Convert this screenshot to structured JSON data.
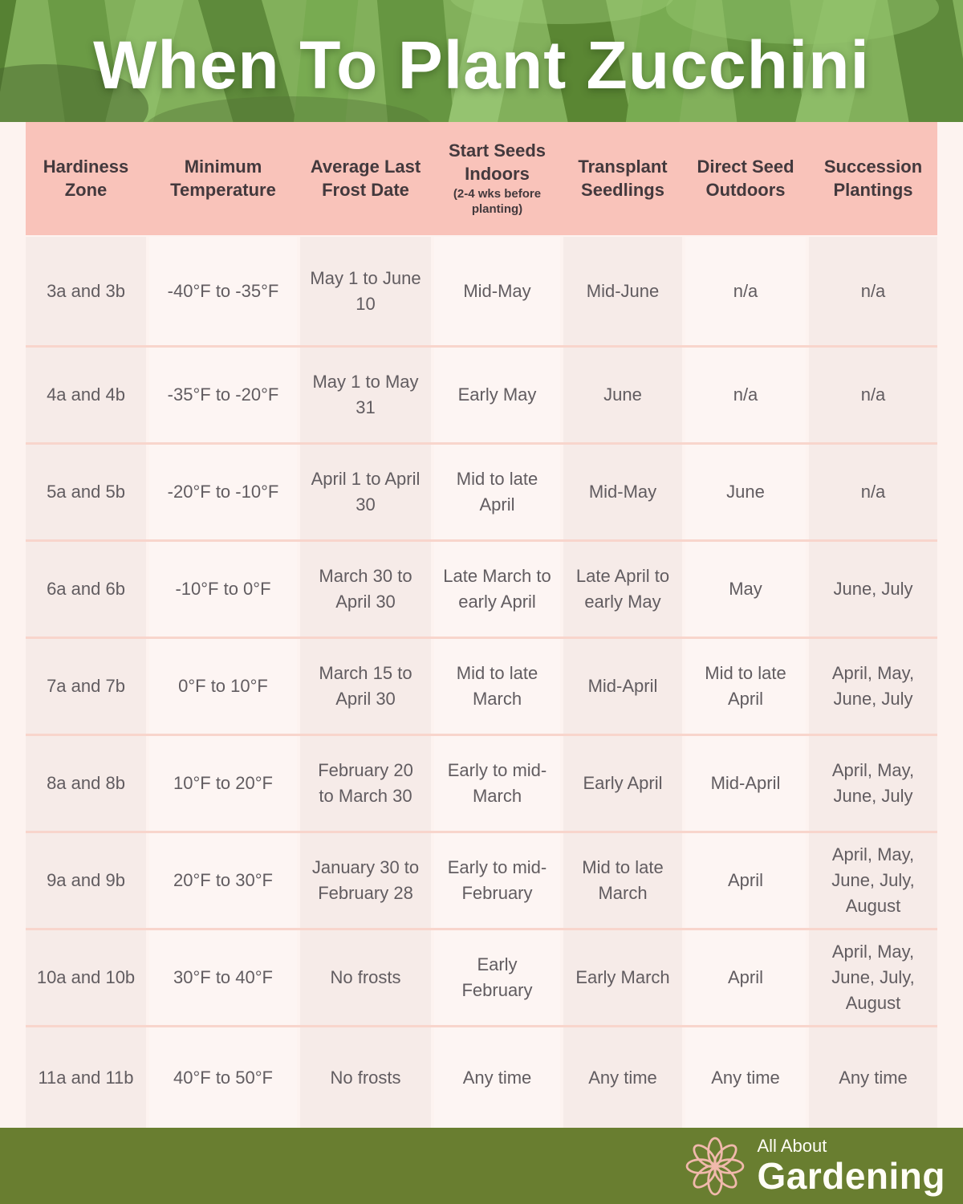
{
  "title": "When To Plant Zucchini",
  "chart_data": {
    "type": "table",
    "title": "When To Plant Zucchini",
    "columns": [
      {
        "label": "Hardiness Zone",
        "sub": ""
      },
      {
        "label": "Minimum Temperature",
        "sub": ""
      },
      {
        "label": "Average Last Frost Date",
        "sub": ""
      },
      {
        "label": "Start Seeds Indoors",
        "sub": "(2-4 wks before planting)"
      },
      {
        "label": "Transplant Seedlings",
        "sub": ""
      },
      {
        "label": "Direct Seed Outdoors",
        "sub": ""
      },
      {
        "label": "Succession Plantings",
        "sub": ""
      }
    ],
    "rows": [
      [
        "3a and 3b",
        "-40°F to -35°F",
        "May 1 to June 10",
        "Mid-May",
        "Mid-June",
        "n/a",
        "n/a"
      ],
      [
        "4a and 4b",
        "-35°F to -20°F",
        "May 1 to May 31",
        "Early May",
        "June",
        "n/a",
        "n/a"
      ],
      [
        "5a and 5b",
        "-20°F to -10°F",
        "April 1 to April 30",
        "Mid to late April",
        "Mid-May",
        "June",
        "n/a"
      ],
      [
        "6a and 6b",
        "-10°F to 0°F",
        "March 30 to April 30",
        "Late March to early April",
        "Late April to early May",
        "May",
        "June, July"
      ],
      [
        "7a and 7b",
        "0°F to 10°F",
        "March 15 to April 30",
        "Mid to late March",
        "Mid-April",
        "Mid to late April",
        "April, May, June, July"
      ],
      [
        "8a and 8b",
        "10°F to 20°F",
        "February 20 to March 30",
        "Early to mid-March",
        "Early April",
        "Mid-April",
        "April, May, June, July"
      ],
      [
        "9a and 9b",
        "20°F to 30°F",
        "January 30 to February 28",
        "Early to mid-February",
        "Mid to late March",
        "April",
        "April, May, June, July, August"
      ],
      [
        "10a and 10b",
        "30°F to 40°F",
        "No frosts",
        "Early February",
        "Early March",
        "April",
        "April, May, June, July, August"
      ],
      [
        "11a and 11b",
        "40°F to 50°F",
        "No frosts",
        "Any time",
        "Any time",
        "Any time",
        "Any time"
      ]
    ],
    "layout": {
      "header_position": "top",
      "grid": "row dividers, alternating column shading"
    }
  },
  "footer": {
    "brand_top": "All About",
    "brand_bottom": "Gardening",
    "flower_icon": "flower-icon"
  },
  "colors": {
    "page_background": "#fdf3f0",
    "header_row_pink": "#f9c3ba",
    "header_text": "#43393d",
    "cell_text": "#615c60",
    "column_shade_dark": "#f6ebe8",
    "column_shade_light": "#fdf5f3",
    "row_divider": "#f8d5cc",
    "footer_green": "#697e30",
    "logo_pink": "#f1b9ac",
    "title_white": "#ffffff"
  }
}
